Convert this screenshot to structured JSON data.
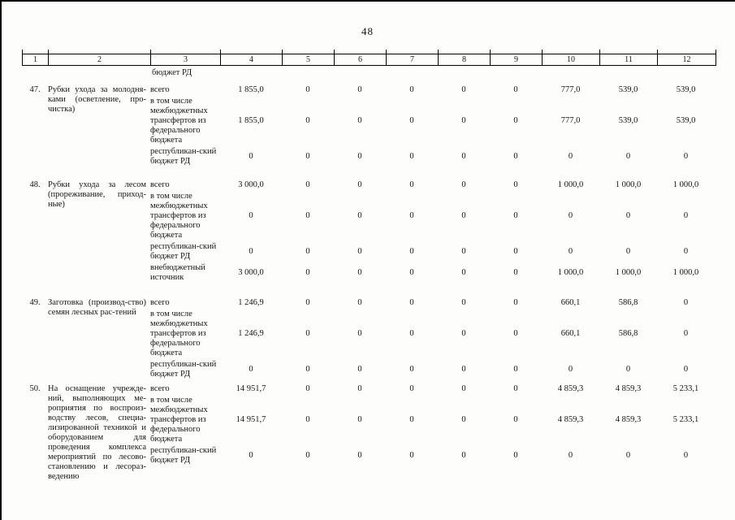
{
  "page": {
    "number": "48"
  },
  "table": {
    "header_cols": [
      "1",
      "2",
      "3",
      "4",
      "5",
      "6",
      "7",
      "8",
      "9",
      "10",
      "11",
      "12"
    ],
    "carryover_text": "бюджет РД",
    "rows": [
      {
        "num": "47.",
        "name": "Рубки ухода за молодня-ками (осветление, про-чистка)",
        "subrows": [
          {
            "label": "всего",
            "values": [
              "1 855,0",
              "0",
              "0",
              "0",
              "0",
              "0",
              "777,0",
              "539,0",
              "539,0"
            ]
          },
          {
            "label": "в том числе межбюджетных трансфертов из федерального бюджета",
            "values": [
              "1 855,0",
              "0",
              "0",
              "0",
              "0",
              "0",
              "777,0",
              "539,0",
              "539,0"
            ]
          },
          {
            "label": "республикан-ский бюджет РД",
            "values": [
              "0",
              "0",
              "0",
              "0",
              "0",
              "0",
              "0",
              "0",
              "0"
            ]
          }
        ]
      },
      {
        "num": "48.",
        "name": "Рубки ухода за лесом (прореживание, приход-ные)",
        "subrows": [
          {
            "label": "всего",
            "values": [
              "3 000,0",
              "0",
              "0",
              "0",
              "0",
              "0",
              "1 000,0",
              "1 000,0",
              "1 000,0"
            ]
          },
          {
            "label": "в том числе межбюджетных трансфертов из федерального бюджета",
            "values": [
              "0",
              "0",
              "0",
              "0",
              "0",
              "0",
              "0",
              "0",
              "0"
            ]
          },
          {
            "label": "республикан-ский бюджет РД",
            "values": [
              "0",
              "0",
              "0",
              "0",
              "0",
              "0",
              "0",
              "0",
              "0"
            ]
          },
          {
            "label": "внебюджетный источник",
            "values": [
              "3 000,0",
              "0",
              "0",
              "0",
              "0",
              "0",
              "1 000,0",
              "1 000,0",
              "1 000,0"
            ]
          }
        ]
      },
      {
        "num": "49.",
        "name": "Заготовка (производ-ство) семян лесных рас-тений",
        "subrows": [
          {
            "label": "всего",
            "values": [
              "1 246,9",
              "0",
              "0",
              "0",
              "0",
              "0",
              "660,1",
              "586,8",
              "0"
            ]
          },
          {
            "label": "в том числе межбюджетных трансфертов из федерального бюджета",
            "values": [
              "1 246,9",
              "0",
              "0",
              "0",
              "0",
              "0",
              "660,1",
              "586,8",
              "0"
            ]
          },
          {
            "label": "республикан-ский бюджет РД",
            "values": [
              "0",
              "0",
              "0",
              "0",
              "0",
              "0",
              "0",
              "0",
              "0"
            ]
          }
        ]
      },
      {
        "num": "50.",
        "name": "На оснащение учрежде-ний, выполняющих ме-роприятия по воспроиз-водству лесов, специа-лизированной техникой и оборудованием для проведения комплекса мероприятий по лесово-становлению и лесораз-ведению",
        "subrows": [
          {
            "label": "всего",
            "values": [
              "14 951,7",
              "0",
              "0",
              "0",
              "0",
              "0",
              "4 859,3",
              "4 859,3",
              "5 233,1"
            ]
          },
          {
            "label": "в том числе межбюджетных трансфертов из федерального бюджета",
            "values": [
              "14 951,7",
              "0",
              "0",
              "0",
              "0",
              "0",
              "4 859,3",
              "4 859,3",
              "5 233,1"
            ]
          },
          {
            "label": "республикан-ский бюджет РД",
            "values": [
              "0",
              "0",
              "0",
              "0",
              "0",
              "0",
              "0",
              "0",
              "0"
            ]
          }
        ]
      }
    ]
  }
}
